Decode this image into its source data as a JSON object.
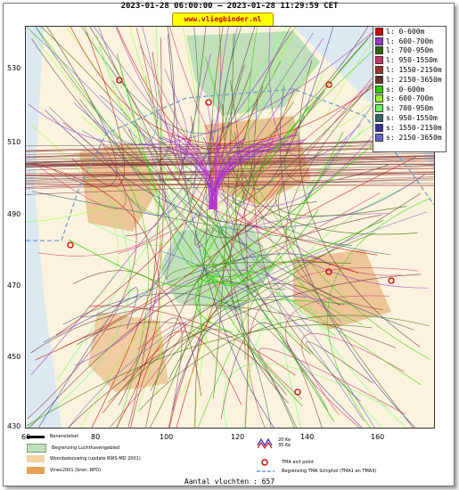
{
  "header": {
    "title": "2023-01-28 06:00:00 – 2023-01-28 11:29:59 CET",
    "site": "www.vliegbinder.nl"
  },
  "map": {
    "y_ticks": [
      "530",
      "510",
      "490",
      "470",
      "450",
      "430"
    ],
    "x_ticks": [
      "60",
      "80",
      "100",
      "120",
      "140",
      "160"
    ],
    "colors": {
      "water": "#dce9f0",
      "land": "#fbf3dd",
      "green_area": "#bfe0b8",
      "urban": "#e7b27a",
      "tma_line": "#6699cc"
    }
  },
  "legend": {
    "items": [
      {
        "label": "l: 0-600m",
        "color": "#cc0000"
      },
      {
        "label": "l: 600-700m",
        "color": "#9933cc"
      },
      {
        "label": "l: 700-950m",
        "color": "#336600"
      },
      {
        "label": "l: 950-1550m",
        "color": "#cc3366"
      },
      {
        "label": "l: 1550-2150m",
        "color": "#993333"
      },
      {
        "label": "l: 2150-3650m",
        "color": "#663333"
      },
      {
        "label": "s: 0-600m",
        "color": "#33cc00"
      },
      {
        "label": "s: 600-700m",
        "color": "#99ff33"
      },
      {
        "label": "s: 700-950m",
        "color": "#66ff66"
      },
      {
        "label": "s: 950-1550m",
        "color": "#336666"
      },
      {
        "label": "s: 1550-2150m",
        "color": "#333399"
      },
      {
        "label": "s: 2150-3650m",
        "color": "#6666cc"
      }
    ]
  },
  "bottom_legend": {
    "runways": "Banenstelsel",
    "airport_boundary": "Begrenzing Luchthavengebied",
    "housing": "Woonbebouwing (update RWS-MD 2001)",
    "vinex": "Vinex2001 (bron: RPD)",
    "kv20": "20 Ke",
    "kv35": "35 Ke",
    "tma_exit": "TMA exit point",
    "tma_boundary": "Begrenzing TMA Schiphol  (TMA1 en TMA3)"
  },
  "footer": {
    "count": "Aantal vluchten : 657"
  }
}
